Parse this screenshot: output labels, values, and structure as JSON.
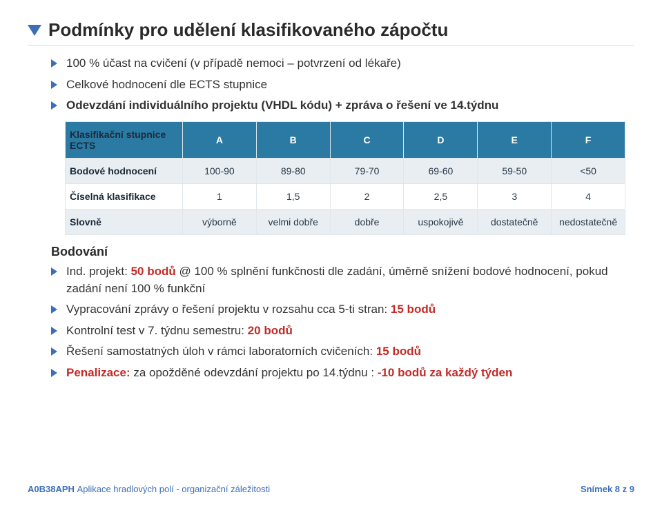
{
  "title": "Podmínky pro udělení klasifikovaného zápočtu",
  "intro_bullets": [
    "100 % účast na cvičení (v případě nemoci – potvrzení od lékaře)",
    "Celkové hodnocení dle ECTS stupnice",
    "Odevzdání individuálního projektu (VHDL kódu) + zpráva o řešení ve 14.týdnu"
  ],
  "table": {
    "columns": [
      "Klasifikační stupnice ECTS",
      "A",
      "B",
      "C",
      "D",
      "E",
      "F"
    ],
    "rows": [
      {
        "label": "Bodové hodnocení",
        "cells": [
          "100-90",
          "89-80",
          "79-70",
          "69-60",
          "59-50",
          "<50"
        ],
        "band": true
      },
      {
        "label": "Číselná klasifikace",
        "cells": [
          "1",
          "1,5",
          "2",
          "2,5",
          "3",
          "4"
        ],
        "band": false
      },
      {
        "label": "Slovně",
        "cells": [
          "výborně",
          "velmi dobře",
          "dobře",
          "uspokojivě",
          "dostatečně",
          "nedostatečně"
        ],
        "band": true
      }
    ],
    "header_bg": "#2b7aa3",
    "band_bg": "#e9eef2",
    "border_color": "#e0e6ea"
  },
  "scoring_heading": "Bodování",
  "scoring_items": [
    {
      "pre": "Ind. projekt: ",
      "hl": "50 bodů",
      "post": "    @ 100 % splnění funkčnosti dle zadání, úměrně snížení bodové hodnocení,  pokud zadání není 100 % funkční"
    },
    {
      "pre": "Vypracování zprávy o řešení projektu v rozsahu cca 5-ti stran: ",
      "hl": "15 bodů",
      "post": ""
    },
    {
      "pre": "Kontrolní test v 7. týdnu semestru: ",
      "hl": "20 bodů",
      "post": ""
    },
    {
      "pre": "Řešení samostatných úloh v rámci laboratorních cvičeních: ",
      "hl": "15 bodů",
      "post": ""
    },
    {
      "pre": "",
      "hl": "Penalizace: ",
      "post_pre": "za opožděné odevzdání projektu po 14.týdnu : ",
      "hl2": "-10 bodů za každý týden"
    }
  ],
  "footer": {
    "course_code": "A0B38APH",
    "course_title": "Aplikace hradlových polí - organizační záležitosti",
    "page_label": "Snímek 8",
    "page_total": " z 9"
  },
  "colors": {
    "accent": "#3d6eb8",
    "red": "#c22b27",
    "rule": "#cfd6de"
  }
}
